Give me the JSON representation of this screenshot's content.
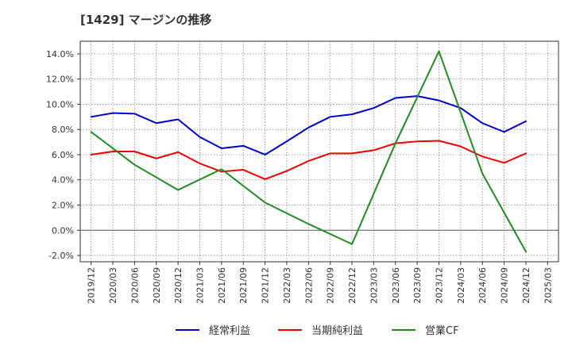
{
  "chart_data": {
    "type": "line",
    "title": "[1429]  マージンの推移",
    "x_tick_labels": [
      "2019/12",
      "2020/03",
      "2020/06",
      "2020/09",
      "2020/12",
      "2021/03",
      "2021/06",
      "2021/09",
      "2021/12",
      "2022/03",
      "2022/06",
      "2022/09",
      "2022/12",
      "2023/03",
      "2023/06",
      "2023/09",
      "2023/12",
      "2024/03",
      "2024/06",
      "2024/09",
      "2024/12",
      "2025/03"
    ],
    "y_tick_labels": [
      "14.0%",
      "12.0%",
      "10.0%",
      "8.0%",
      "6.0%",
      "4.0%",
      "2.0%",
      "0.0%",
      "-2.0%"
    ],
    "ylim": [
      -2.5,
      15.0
    ],
    "grid": true,
    "legend_position": "bottom",
    "series": [
      {
        "name": "経常利益",
        "color": "#0000cc",
        "x": [
          "2019/12",
          "2020/03",
          "2020/06",
          "2020/09",
          "2020/12",
          "2021/03",
          "2021/06",
          "2021/09",
          "2021/12",
          "2022/03",
          "2022/06",
          "2022/09",
          "2022/12",
          "2023/03",
          "2023/06",
          "2023/09",
          "2023/12",
          "2024/03",
          "2024/06",
          "2024/09",
          "2024/12"
        ],
        "values": [
          9.0,
          9.3,
          9.25,
          8.5,
          8.8,
          7.4,
          6.5,
          6.7,
          6.0,
          7.05,
          8.15,
          9.0,
          9.2,
          9.7,
          10.5,
          10.65,
          10.3,
          9.7,
          8.5,
          7.8,
          8.65
        ]
      },
      {
        "name": "当期純利益",
        "color": "#ee0000",
        "x": [
          "2019/12",
          "2020/03",
          "2020/06",
          "2020/09",
          "2020/12",
          "2021/03",
          "2021/06",
          "2021/09",
          "2021/12",
          "2022/03",
          "2022/06",
          "2022/09",
          "2022/12",
          "2023/03",
          "2023/06",
          "2023/09",
          "2023/12",
          "2024/03",
          "2024/06",
          "2024/09",
          "2024/12"
        ],
        "values": [
          6.0,
          6.25,
          6.25,
          5.7,
          6.2,
          5.3,
          4.65,
          4.8,
          4.05,
          4.7,
          5.5,
          6.1,
          6.1,
          6.35,
          6.9,
          7.05,
          7.1,
          6.65,
          5.85,
          5.35,
          6.1
        ]
      },
      {
        "name": "営業CF",
        "color": "#228b22",
        "x": [
          "2019/12",
          "2020/06",
          "2020/12",
          "2021/06",
          "2021/12",
          "2022/06",
          "2022/12",
          "2023/06",
          "2023/12",
          "2024/06",
          "2024/12"
        ],
        "values": [
          7.8,
          5.2,
          3.2,
          4.85,
          2.2,
          0.5,
          -1.1,
          6.9,
          14.2,
          4.5,
          -1.7
        ]
      }
    ]
  }
}
